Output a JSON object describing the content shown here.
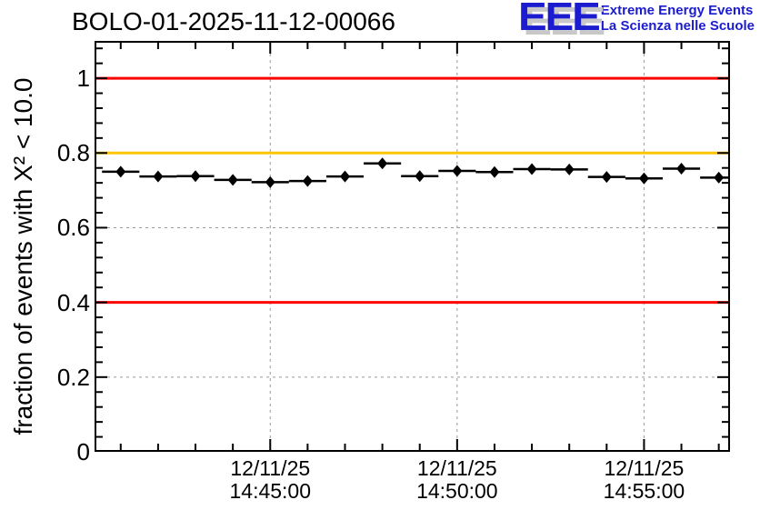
{
  "header": {
    "logo": {
      "acronym": "EEE",
      "line1": "Extreme Energy Events",
      "line2": "La Scienza nelle Scuole",
      "color": "#1b1bd0",
      "shadow_color": "#c8c8c8"
    }
  },
  "chart_data": {
    "type": "scatter",
    "title": "BOLO-01-2025-11-12-00066",
    "xlabel": "",
    "ylabel": "fraction of events with X² < 10.0",
    "ylim": [
      0,
      1.1
    ],
    "x_range": [
      "14:40:18",
      "14:57:18"
    ],
    "grid": true,
    "grid_color": "#999999",
    "frame_color": "#000000",
    "y_major_ticks": [
      0,
      0.2,
      0.4,
      0.6,
      0.8,
      1.0
    ],
    "y_tick_labels": [
      "0",
      "0.2",
      "0.4",
      "0.6",
      "0.8",
      "1"
    ],
    "y_minor_step": 0.04,
    "x_minor_step_seconds": 60,
    "x_major_ticks": [
      "14:45:00",
      "14:50:00",
      "14:55:00"
    ],
    "x_tick_labels": [
      {
        "date": "12/11/25",
        "time": "14:45:00"
      },
      {
        "date": "12/11/25",
        "time": "14:50:00"
      },
      {
        "date": "12/11/25",
        "time": "14:55:00"
      }
    ],
    "reference_lines": [
      {
        "y": 1.0,
        "color": "#ff0000",
        "name": "upper-limit"
      },
      {
        "y": 0.8,
        "color": "#ffc400",
        "name": "warning-level"
      },
      {
        "y": 0.4,
        "color": "#ff0000",
        "name": "lower-limit"
      }
    ],
    "series": [
      {
        "name": "fraction-of-events-chi2-lt-10",
        "marker": "diamond",
        "color": "#000000",
        "x_error_seconds": 30,
        "points": [
          {
            "t": "14:41:00",
            "v": 0.75
          },
          {
            "t": "14:42:00",
            "v": 0.737
          },
          {
            "t": "14:43:00",
            "v": 0.738
          },
          {
            "t": "14:44:00",
            "v": 0.728
          },
          {
            "t": "14:45:00",
            "v": 0.722
          },
          {
            "t": "14:46:00",
            "v": 0.725
          },
          {
            "t": "14:47:00",
            "v": 0.737
          },
          {
            "t": "14:48:00",
            "v": 0.772
          },
          {
            "t": "14:49:00",
            "v": 0.738
          },
          {
            "t": "14:50:00",
            "v": 0.752
          },
          {
            "t": "14:51:00",
            "v": 0.749
          },
          {
            "t": "14:52:00",
            "v": 0.757
          },
          {
            "t": "14:53:00",
            "v": 0.756
          },
          {
            "t": "14:54:00",
            "v": 0.736
          },
          {
            "t": "14:55:00",
            "v": 0.732
          },
          {
            "t": "14:56:00",
            "v": 0.758
          },
          {
            "t": "14:57:00",
            "v": 0.734
          }
        ]
      }
    ]
  }
}
